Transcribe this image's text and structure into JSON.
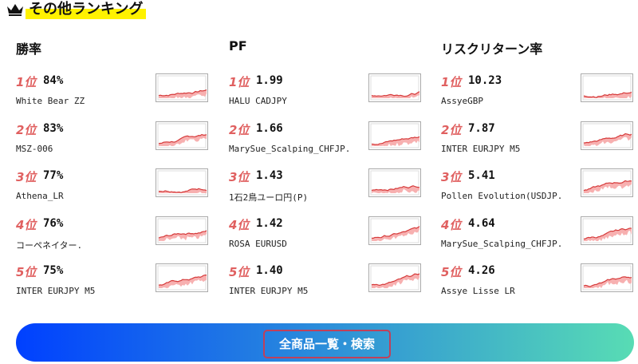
{
  "header": {
    "title": "その他ランキング"
  },
  "columns": [
    {
      "title": "勝率",
      "items": [
        {
          "rank": "1位",
          "value": "84%",
          "name": "White Bear ZZ"
        },
        {
          "rank": "2位",
          "value": "83%",
          "name": "MSZ-006"
        },
        {
          "rank": "3位",
          "value": "77%",
          "name": "Athena_LR"
        },
        {
          "rank": "4位",
          "value": "76%",
          "name": "コーペネイター."
        },
        {
          "rank": "5位",
          "value": "75%",
          "name": "INTER EURJPY M5"
        }
      ]
    },
    {
      "title": "PF",
      "items": [
        {
          "rank": "1位",
          "value": "1.99",
          "name": "HALU CADJPY"
        },
        {
          "rank": "2位",
          "value": "1.66",
          "name": "MarySue_Scalping_CHFJP."
        },
        {
          "rank": "3位",
          "value": "1.43",
          "name": "1石2鳥ユーロ円(P)"
        },
        {
          "rank": "4位",
          "value": "1.42",
          "name": "ROSA EURUSD"
        },
        {
          "rank": "5位",
          "value": "1.40",
          "name": "INTER EURJPY M5"
        }
      ]
    },
    {
      "title": "リスクリターン率",
      "items": [
        {
          "rank": "1位",
          "value": "10.23",
          "name": "AssyeGBP"
        },
        {
          "rank": "2位",
          "value": "7.87",
          "name": "INTER EURJPY M5"
        },
        {
          "rank": "3位",
          "value": "5.41",
          "name": "Pollen Evolution(USDJP."
        },
        {
          "rank": "4位",
          "value": "4.64",
          "name": "MarySue_Scalping_CHFJP."
        },
        {
          "rank": "5位",
          "value": "4.26",
          "name": "Assye Lisse LR"
        }
      ]
    }
  ],
  "button": {
    "label": "全商品一覧・検索"
  }
}
